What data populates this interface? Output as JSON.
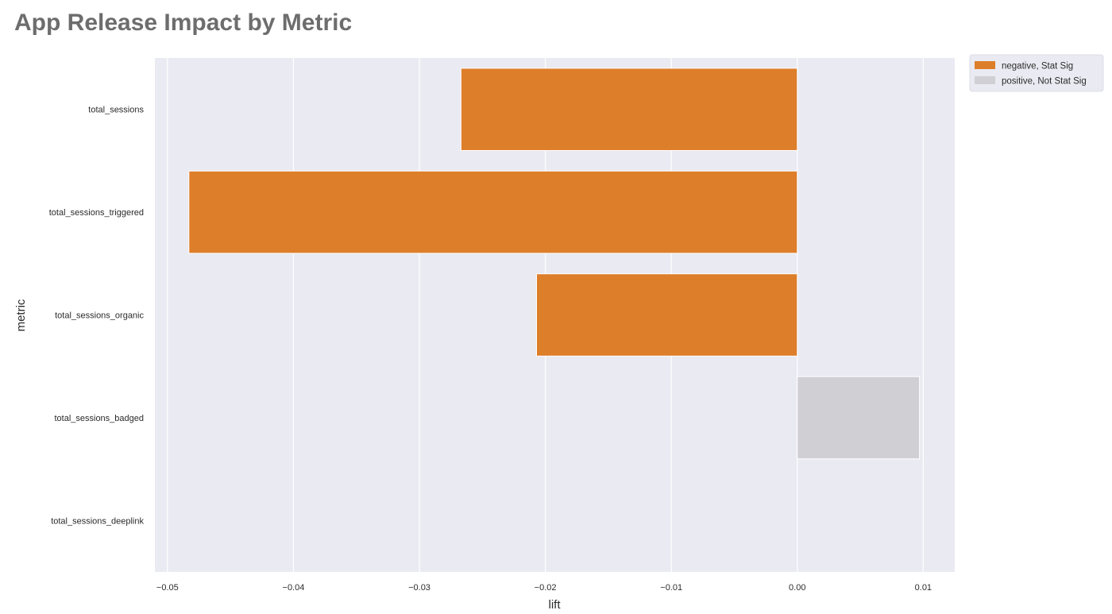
{
  "chart_data": {
    "type": "bar",
    "orientation": "horizontal",
    "title": "App Release Impact by Metric",
    "xlabel": "lift",
    "ylabel": "metric",
    "categories": [
      "total_sessions",
      "total_sessions_triggered",
      "total_sessions_organic",
      "total_sessions_badged",
      "total_sessions_deeplink"
    ],
    "values": [
      -0.0267,
      -0.0483,
      -0.0207,
      0.0097,
      null
    ],
    "bar_groups": [
      "negative, Stat Sig",
      "negative, Stat Sig",
      "negative, Stat Sig",
      "positive, Not Stat Sig",
      null
    ],
    "series": [
      {
        "name": "negative, Stat Sig",
        "color": "#dd7e2a"
      },
      {
        "name": "positive, Not Stat Sig",
        "color": "#cfcfd4"
      }
    ],
    "xlim": [
      -0.051,
      0.0125
    ],
    "x_ticks": [
      -0.05,
      -0.04,
      -0.03,
      -0.02,
      -0.01,
      0.0,
      0.01
    ],
    "x_tick_labels": [
      "−0.05",
      "−0.04",
      "−0.03",
      "−0.02",
      "−0.01",
      "0.00",
      "0.01"
    ],
    "grid": true,
    "grid_axis": "x",
    "legend_position": "outside-top-right",
    "colors": {
      "plot_background": "#eaeaf2",
      "grid": "#ffffff",
      "title": "#6d6d6d"
    }
  }
}
